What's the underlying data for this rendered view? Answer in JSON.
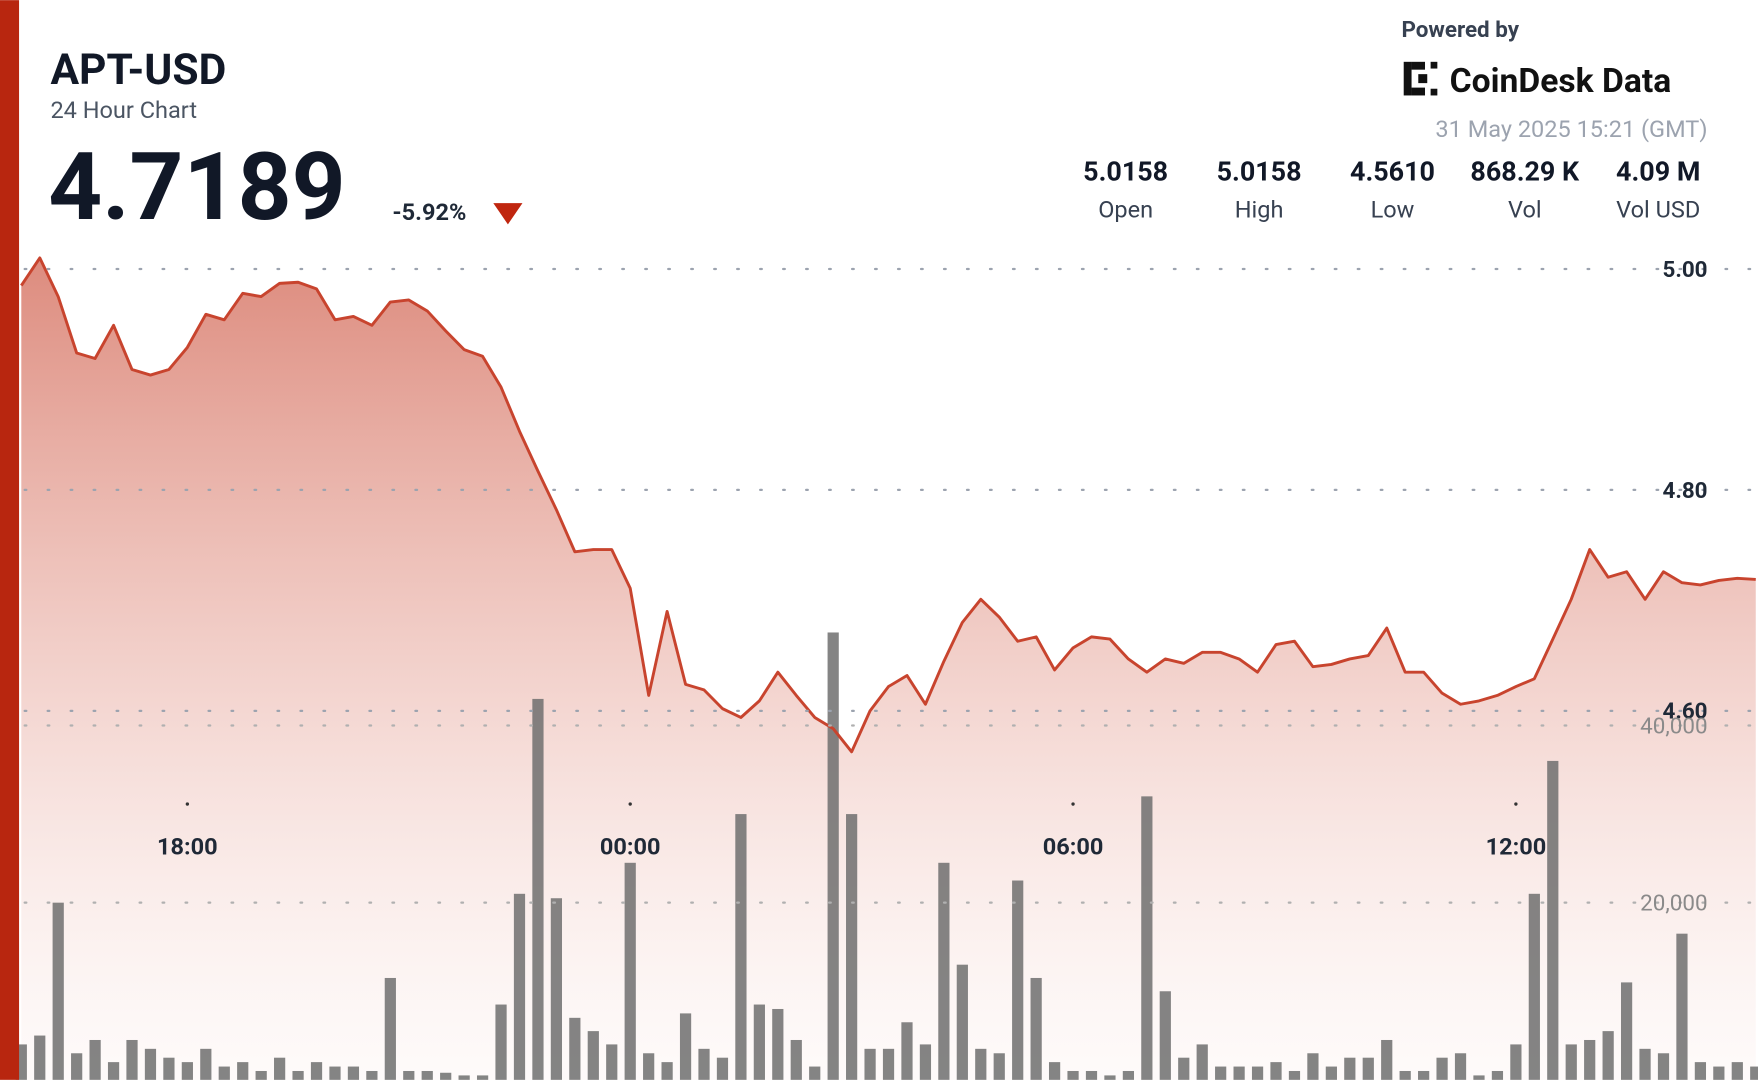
{
  "header": {
    "symbol": "APT-USD",
    "subtitle": "24 Hour Chart",
    "price": "4.7189",
    "change": "-5.92%",
    "powered_by": "Powered by",
    "brand": "CoinDesk Data",
    "timestamp": "31 May 2025 15:21 (GMT)",
    "stats": [
      {
        "value": "5.0158",
        "label": "Open"
      },
      {
        "value": "5.0158",
        "label": "High"
      },
      {
        "value": "4.5610",
        "label": "Low"
      },
      {
        "value": "868.29 K",
        "label": "Vol"
      },
      {
        "value": "4.09 M",
        "label": "Vol USD"
      }
    ]
  },
  "chart_data": {
    "type": "line",
    "categories": [
      null,
      null,
      null,
      null,
      null,
      null,
      null,
      null,
      null,
      "18:00",
      null,
      null,
      null,
      null,
      null,
      null,
      null,
      null,
      null,
      null,
      null,
      null,
      null,
      null,
      null,
      null,
      null,
      null,
      null,
      null,
      null,
      null,
      null,
      "00:00",
      null,
      null,
      null,
      null,
      null,
      null,
      null,
      null,
      null,
      null,
      null,
      null,
      null,
      null,
      null,
      null,
      null,
      null,
      null,
      null,
      null,
      null,
      null,
      "06:00",
      null,
      null,
      null,
      null,
      null,
      null,
      null,
      null,
      null,
      null,
      null,
      null,
      null,
      null,
      null,
      null,
      null,
      null,
      null,
      null,
      null,
      null,
      null,
      "12:00",
      null,
      null,
      null,
      null,
      null,
      null,
      null,
      null,
      null,
      null,
      null,
      null,
      null
    ],
    "series": [
      {
        "color": "#c8442e",
        "values": [
          4.985,
          5.01,
          4.975,
          4.924,
          4.919,
          4.949,
          4.909,
          4.904,
          4.909,
          4.929,
          4.959,
          4.954,
          4.978,
          4.975,
          4.987,
          4.988,
          4.982,
          4.954,
          4.957,
          4.949,
          4.97,
          4.972,
          4.962,
          4.944,
          4.927,
          4.921,
          4.893,
          4.853,
          4.817,
          4.782,
          4.744,
          4.746,
          4.746,
          4.711,
          4.614,
          4.69,
          4.624,
          4.619,
          4.602,
          4.594,
          4.609,
          4.635,
          4.614,
          4.594,
          4.584,
          4.563,
          4.6,
          4.622,
          4.632,
          4.606,
          4.645,
          4.68,
          4.701,
          4.685,
          4.663,
          4.667,
          4.637,
          4.657,
          4.667,
          4.665,
          4.647,
          4.635,
          4.647,
          4.643,
          4.653,
          4.653,
          4.647,
          4.635,
          4.66,
          4.663,
          4.64,
          4.642,
          4.647,
          4.65,
          4.675,
          4.635,
          4.635,
          4.616,
          4.606,
          4.609,
          4.614,
          4.622,
          4.629,
          4.665,
          4.701,
          4.746,
          4.721,
          4.726,
          4.701,
          4.726,
          4.716,
          4.714,
          4.718,
          4.72,
          4.719
        ]
      },
      {
        "color": "#6e6e6e",
        "type": "bar",
        "axis": "y2",
        "values": [
          4000,
          5000,
          20000,
          3000,
          4500,
          2000,
          4500,
          3500,
          2500,
          2000,
          3500,
          1500,
          2000,
          1000,
          2500,
          1000,
          2000,
          1500,
          1500,
          1000,
          11500,
          1000,
          1000,
          800,
          500,
          500,
          8500,
          21000,
          43000,
          20500,
          7000,
          5500,
          4000,
          24500,
          3000,
          2000,
          7500,
          3500,
          2500,
          30000,
          8500,
          8000,
          4500,
          1500,
          50500,
          30000,
          3500,
          3500,
          6500,
          4000,
          24500,
          13000,
          3500,
          3000,
          22500,
          11500,
          2000,
          1000,
          1000,
          500,
          1000,
          32000,
          10000,
          2500,
          4000,
          1500,
          1500,
          1500,
          2000,
          1000,
          3000,
          1500,
          2500,
          2500,
          4500,
          1000,
          1000,
          2500,
          3000,
          500,
          1000,
          4000,
          21000,
          36000,
          4000,
          4500,
          5500,
          11000,
          3500,
          3000,
          16500,
          2000,
          1500,
          2000,
          1500
        ]
      }
    ],
    "ylim": [
      4.266,
      5.015
    ],
    "yticks": [
      {
        "value": 4.6,
        "label": "4.60"
      },
      {
        "value": 4.8,
        "label": "4.80"
      },
      {
        "value": 5.0,
        "label": "5.00"
      }
    ],
    "y2lim": [
      0,
      93400
    ],
    "y2ticks": [
      {
        "value": 20000,
        "label": "20,000"
      },
      {
        "value": 40000,
        "label": "40,000"
      }
    ],
    "grid": true
  }
}
